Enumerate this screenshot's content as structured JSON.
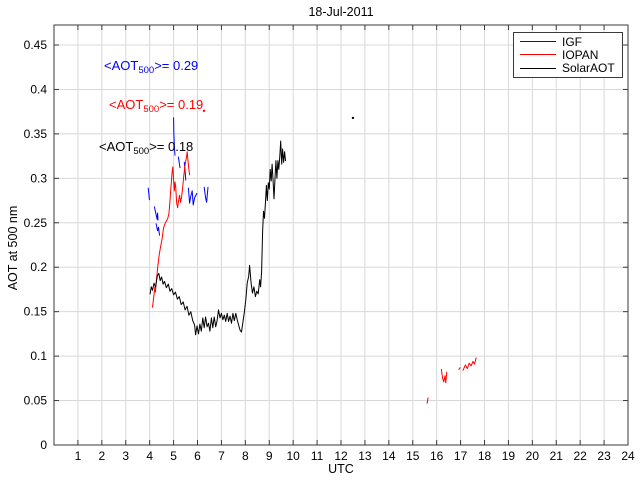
{
  "title": "18-Jul-2011",
  "axes": {
    "xlabel": "UTC",
    "ylabel": "AOT at 500 nm",
    "xlim": [
      0,
      24
    ],
    "ylim": [
      0,
      0.4725
    ],
    "x_ticks": [
      1,
      2,
      3,
      4,
      5,
      6,
      7,
      8,
      9,
      10,
      11,
      12,
      13,
      14,
      15,
      16,
      17,
      18,
      19,
      20,
      21,
      22,
      23,
      24
    ],
    "y_ticks": [
      0,
      0.05,
      0.1,
      0.15,
      0.2,
      0.25,
      0.3,
      0.35,
      0.4,
      0.45
    ],
    "y_tick_labels": [
      "0",
      "0.05",
      "0.1",
      "0.15",
      "0.2",
      "0.25",
      "0.3",
      "0.35",
      "0.4",
      "0.45"
    ],
    "grid": true,
    "frame_color": "#3a3a3a",
    "grid_color": "#d8d8d8"
  },
  "legend": {
    "position": "top-right",
    "items": [
      {
        "label": "IGF",
        "color": "#0000ff"
      },
      {
        "label": "IOPAN",
        "color": "#ff0000"
      },
      {
        "label": "SolarAOT",
        "color": "#000000"
      }
    ]
  },
  "annotations": [
    {
      "prefix": "<AOT",
      "sub": "500",
      "suffix": ">= 0.29",
      "color": "#0000ff"
    },
    {
      "prefix": "<AOT",
      "sub": "500",
      "suffix": ">= 0.19",
      "color": "#ff0000"
    },
    {
      "prefix": "<AOT",
      "sub": "500",
      "suffix": ">= 0.18",
      "color": "#000000"
    }
  ],
  "chart_data": {
    "type": "line",
    "xlabel": "UTC",
    "ylabel": "AOT at 500 nm",
    "title": "18-Jul-2011",
    "xlim": [
      0,
      24
    ],
    "ylim": [
      0,
      0.4725
    ],
    "series": [
      {
        "name": "IGF",
        "color": "#0000ff",
        "mean_aot500": 0.29,
        "segments": [
          [
            [
              3.94,
              0.289
            ],
            [
              3.97,
              0.282
            ],
            [
              3.99,
              0.276
            ]
          ],
          [
            [
              4.2,
              0.268
            ],
            [
              4.26,
              0.26
            ],
            [
              4.31,
              0.254
            ],
            [
              4.33,
              0.261
            ],
            [
              4.35,
              0.253
            ]
          ],
          [
            [
              4.27,
              0.249
            ],
            [
              4.33,
              0.241
            ],
            [
              4.37,
              0.245
            ],
            [
              4.41,
              0.236
            ]
          ],
          [
            [
              5.0,
              0.368
            ],
            [
              5.01,
              0.352
            ],
            [
              5.02,
              0.344
            ],
            [
              5.04,
              0.333
            ],
            [
              5.06,
              0.326
            ]
          ],
          [
            [
              5.2,
              0.324
            ],
            [
              5.24,
              0.317
            ],
            [
              5.27,
              0.312
            ]
          ],
          [
            [
              5.45,
              0.318
            ],
            [
              5.48,
              0.308
            ],
            [
              5.51,
              0.298
            ]
          ],
          [
            [
              5.62,
              0.289
            ],
            [
              5.67,
              0.272
            ],
            [
              5.72,
              0.28
            ],
            [
              5.78,
              0.286
            ],
            [
              5.82,
              0.27
            ],
            [
              5.88,
              0.278
            ],
            [
              5.97,
              0.283
            ]
          ],
          [
            [
              6.28,
              0.29
            ],
            [
              6.34,
              0.278
            ],
            [
              6.38,
              0.273
            ],
            [
              6.44,
              0.29
            ]
          ]
        ]
      },
      {
        "name": "IOPAN",
        "color": "#ff0000",
        "mean_aot500": 0.19,
        "segments": [
          [
            [
              4.12,
              0.155
            ],
            [
              4.18,
              0.169
            ],
            [
              4.22,
              0.178
            ],
            [
              4.24,
              0.172
            ],
            [
              4.3,
              0.19
            ],
            [
              4.35,
              0.203
            ],
            [
              4.4,
              0.214
            ],
            [
              4.45,
              0.222
            ],
            [
              4.52,
              0.232
            ],
            [
              4.58,
              0.244
            ],
            [
              4.64,
              0.249
            ],
            [
              4.7,
              0.252
            ],
            [
              4.76,
              0.255
            ],
            [
              4.81,
              0.261
            ],
            [
              4.85,
              0.275
            ],
            [
              4.88,
              0.287
            ],
            [
              4.91,
              0.296
            ],
            [
              4.94,
              0.307
            ],
            [
              4.97,
              0.313
            ],
            [
              5.0,
              0.298
            ],
            [
              5.03,
              0.286
            ],
            [
              5.06,
              0.296
            ],
            [
              5.09,
              0.29
            ],
            [
              5.13,
              0.272
            ],
            [
              5.17,
              0.267
            ],
            [
              5.21,
              0.275
            ],
            [
              5.25,
              0.281
            ],
            [
              5.29,
              0.273
            ],
            [
              5.33,
              0.278
            ],
            [
              5.38,
              0.29
            ],
            [
              5.42,
              0.301
            ],
            [
              5.46,
              0.311
            ],
            [
              5.5,
              0.318
            ],
            [
              5.54,
              0.324
            ],
            [
              5.57,
              0.33
            ],
            [
              5.6,
              0.321
            ],
            [
              5.64,
              0.31
            ],
            [
              5.67,
              0.304
            ]
          ],
          [
            [
              15.6,
              0.047
            ],
            [
              15.64,
              0.053
            ]
          ],
          [
            [
              16.2,
              0.085
            ],
            [
              16.25,
              0.075
            ],
            [
              16.3,
              0.071
            ],
            [
              16.35,
              0.078
            ],
            [
              16.38,
              0.07
            ],
            [
              16.42,
              0.082
            ]
          ],
          [
            [
              16.93,
              0.085
            ],
            [
              16.98,
              0.087
            ]
          ],
          [
            [
              17.1,
              0.084
            ],
            [
              17.2,
              0.09
            ],
            [
              17.28,
              0.086
            ],
            [
              17.36,
              0.092
            ],
            [
              17.44,
              0.089
            ],
            [
              17.52,
              0.094
            ],
            [
              17.58,
              0.091
            ],
            [
              17.65,
              0.098
            ]
          ]
        ]
      },
      {
        "name": "SolarAOT",
        "color": "#000000",
        "mean_aot500": 0.18,
        "segments": [
          [
            [
              4.02,
              0.17
            ],
            [
              4.07,
              0.178
            ],
            [
              4.12,
              0.174
            ],
            [
              4.18,
              0.182
            ],
            [
              4.25,
              0.178
            ],
            [
              4.32,
              0.19
            ],
            [
              4.38,
              0.193
            ],
            [
              4.44,
              0.185
            ],
            [
              4.5,
              0.189
            ],
            [
              4.56,
              0.181
            ],
            [
              4.62,
              0.184
            ],
            [
              4.7,
              0.177
            ],
            [
              4.78,
              0.181
            ],
            [
              4.85,
              0.173
            ],
            [
              4.92,
              0.176
            ],
            [
              5.0,
              0.169
            ],
            [
              5.08,
              0.172
            ],
            [
              5.16,
              0.164
            ],
            [
              5.24,
              0.167
            ],
            [
              5.32,
              0.158
            ],
            [
              5.4,
              0.161
            ],
            [
              5.48,
              0.152
            ],
            [
              5.56,
              0.156
            ],
            [
              5.64,
              0.146
            ],
            [
              5.72,
              0.15
            ],
            [
              5.8,
              0.14
            ],
            [
              5.88,
              0.135
            ],
            [
              5.92,
              0.124
            ],
            [
              5.98,
              0.134
            ],
            [
              6.04,
              0.125
            ],
            [
              6.1,
              0.136
            ],
            [
              6.16,
              0.128
            ],
            [
              6.22,
              0.143
            ],
            [
              6.28,
              0.132
            ],
            [
              6.34,
              0.144
            ],
            [
              6.4,
              0.133
            ],
            [
              6.46,
              0.137
            ],
            [
              6.52,
              0.128
            ],
            [
              6.58,
              0.143
            ],
            [
              6.64,
              0.132
            ],
            [
              6.7,
              0.144
            ],
            [
              6.76,
              0.133
            ],
            [
              6.82,
              0.14
            ],
            [
              6.88,
              0.152
            ],
            [
              6.94,
              0.143
            ],
            [
              7.0,
              0.148
            ],
            [
              7.06,
              0.141
            ],
            [
              7.12,
              0.146
            ],
            [
              7.18,
              0.139
            ],
            [
              7.24,
              0.148
            ],
            [
              7.3,
              0.139
            ],
            [
              7.36,
              0.145
            ],
            [
              7.42,
              0.137
            ],
            [
              7.48,
              0.148
            ],
            [
              7.54,
              0.14
            ],
            [
              7.6,
              0.148
            ],
            [
              7.66,
              0.141
            ],
            [
              7.72,
              0.135
            ],
            [
              7.78,
              0.129
            ],
            [
              7.84,
              0.127
            ],
            [
              7.9,
              0.138
            ],
            [
              7.96,
              0.15
            ],
            [
              8.02,
              0.163
            ],
            [
              8.08,
              0.182
            ],
            [
              8.14,
              0.19
            ],
            [
              8.18,
              0.202
            ],
            [
              8.24,
              0.182
            ],
            [
              8.3,
              0.171
            ],
            [
              8.36,
              0.178
            ],
            [
              8.42,
              0.167
            ],
            [
              8.48,
              0.173
            ],
            [
              8.54,
              0.17
            ],
            [
              8.6,
              0.186
            ],
            [
              8.64,
              0.178
            ],
            [
              8.68,
              0.195
            ],
            [
              8.72,
              0.24
            ],
            [
              8.76,
              0.263
            ],
            [
              8.8,
              0.255
            ],
            [
              8.84,
              0.272
            ],
            [
              8.88,
              0.292
            ],
            [
              8.92,
              0.275
            ],
            [
              8.96,
              0.295
            ],
            [
              9.0,
              0.288
            ],
            [
              9.04,
              0.31
            ],
            [
              9.08,
              0.297
            ],
            [
              9.12,
              0.316
            ],
            [
              9.16,
              0.297
            ],
            [
              9.2,
              0.277
            ],
            [
              9.24,
              0.3
            ],
            [
              9.28,
              0.32
            ],
            [
              9.32,
              0.3
            ],
            [
              9.36,
              0.32
            ],
            [
              9.4,
              0.31
            ],
            [
              9.44,
              0.325
            ],
            [
              9.48,
              0.342
            ],
            [
              9.52,
              0.316
            ],
            [
              9.56,
              0.333
            ],
            [
              9.6,
              0.318
            ],
            [
              9.64,
              0.33
            ],
            [
              9.68,
              0.32
            ]
          ]
        ]
      }
    ],
    "stray_points": [
      {
        "series": "IOPAN",
        "color": "#ff0000",
        "x": 6.27,
        "y": 0.376
      },
      {
        "series": "SolarAOT",
        "color": "#000000",
        "x": 12.5,
        "y": 0.368
      }
    ]
  }
}
